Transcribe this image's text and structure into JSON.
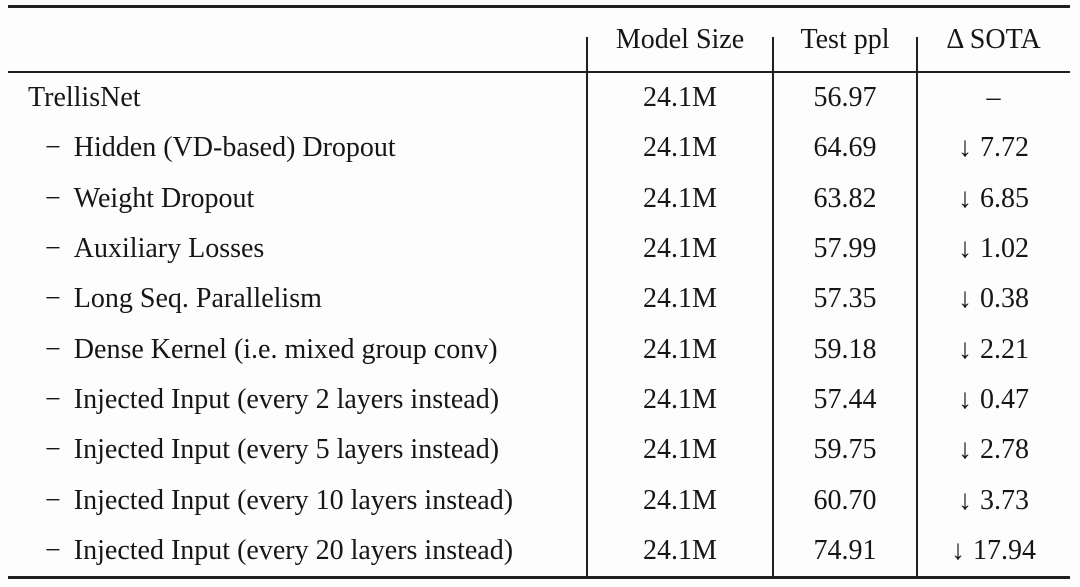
{
  "colors": {
    "text": "#161616",
    "rule": "#1f1f1f",
    "background": "#fdfdfd"
  },
  "table": {
    "header": {
      "label_col": "",
      "model_size": "Model Size",
      "test_ppl": "Test ppl",
      "delta_sota": "Δ SOTA"
    },
    "rows": [
      {
        "prefix": "",
        "label": "TrellisNet",
        "model_size": "24.1M",
        "test_ppl": "56.97",
        "delta_arrow": "",
        "delta_value": "–"
      },
      {
        "prefix": "−",
        "label": "Hidden (VD-based) Dropout",
        "model_size": "24.1M",
        "test_ppl": "64.69",
        "delta_arrow": "↓",
        "delta_value": "7.72"
      },
      {
        "prefix": "−",
        "label": "Weight Dropout",
        "model_size": "24.1M",
        "test_ppl": "63.82",
        "delta_arrow": "↓",
        "delta_value": "6.85"
      },
      {
        "prefix": "−",
        "label": "Auxiliary Losses",
        "model_size": "24.1M",
        "test_ppl": "57.99",
        "delta_arrow": "↓",
        "delta_value": "1.02"
      },
      {
        "prefix": "−",
        "label": "Long Seq. Parallelism",
        "model_size": "24.1M",
        "test_ppl": "57.35",
        "delta_arrow": "↓",
        "delta_value": "0.38"
      },
      {
        "prefix": "−",
        "label": "Dense Kernel (i.e. mixed group conv)",
        "model_size": "24.1M",
        "test_ppl": "59.18",
        "delta_arrow": "↓",
        "delta_value": "2.21"
      },
      {
        "prefix": "−",
        "label": "Injected Input (every 2 layers instead)",
        "model_size": "24.1M",
        "test_ppl": "57.44",
        "delta_arrow": "↓",
        "delta_value": "0.47"
      },
      {
        "prefix": "−",
        "label": "Injected Input (every 5 layers instead)",
        "model_size": "24.1M",
        "test_ppl": "59.75",
        "delta_arrow": "↓",
        "delta_value": "2.78"
      },
      {
        "prefix": "−",
        "label": "Injected Input (every 10 layers instead)",
        "model_size": "24.1M",
        "test_ppl": "60.70",
        "delta_arrow": "↓",
        "delta_value": "3.73"
      },
      {
        "prefix": "−",
        "label": "Injected Input (every 20 layers instead)",
        "model_size": "24.1M",
        "test_ppl": "74.91",
        "delta_arrow": "↓",
        "delta_value": "17.94"
      }
    ]
  }
}
